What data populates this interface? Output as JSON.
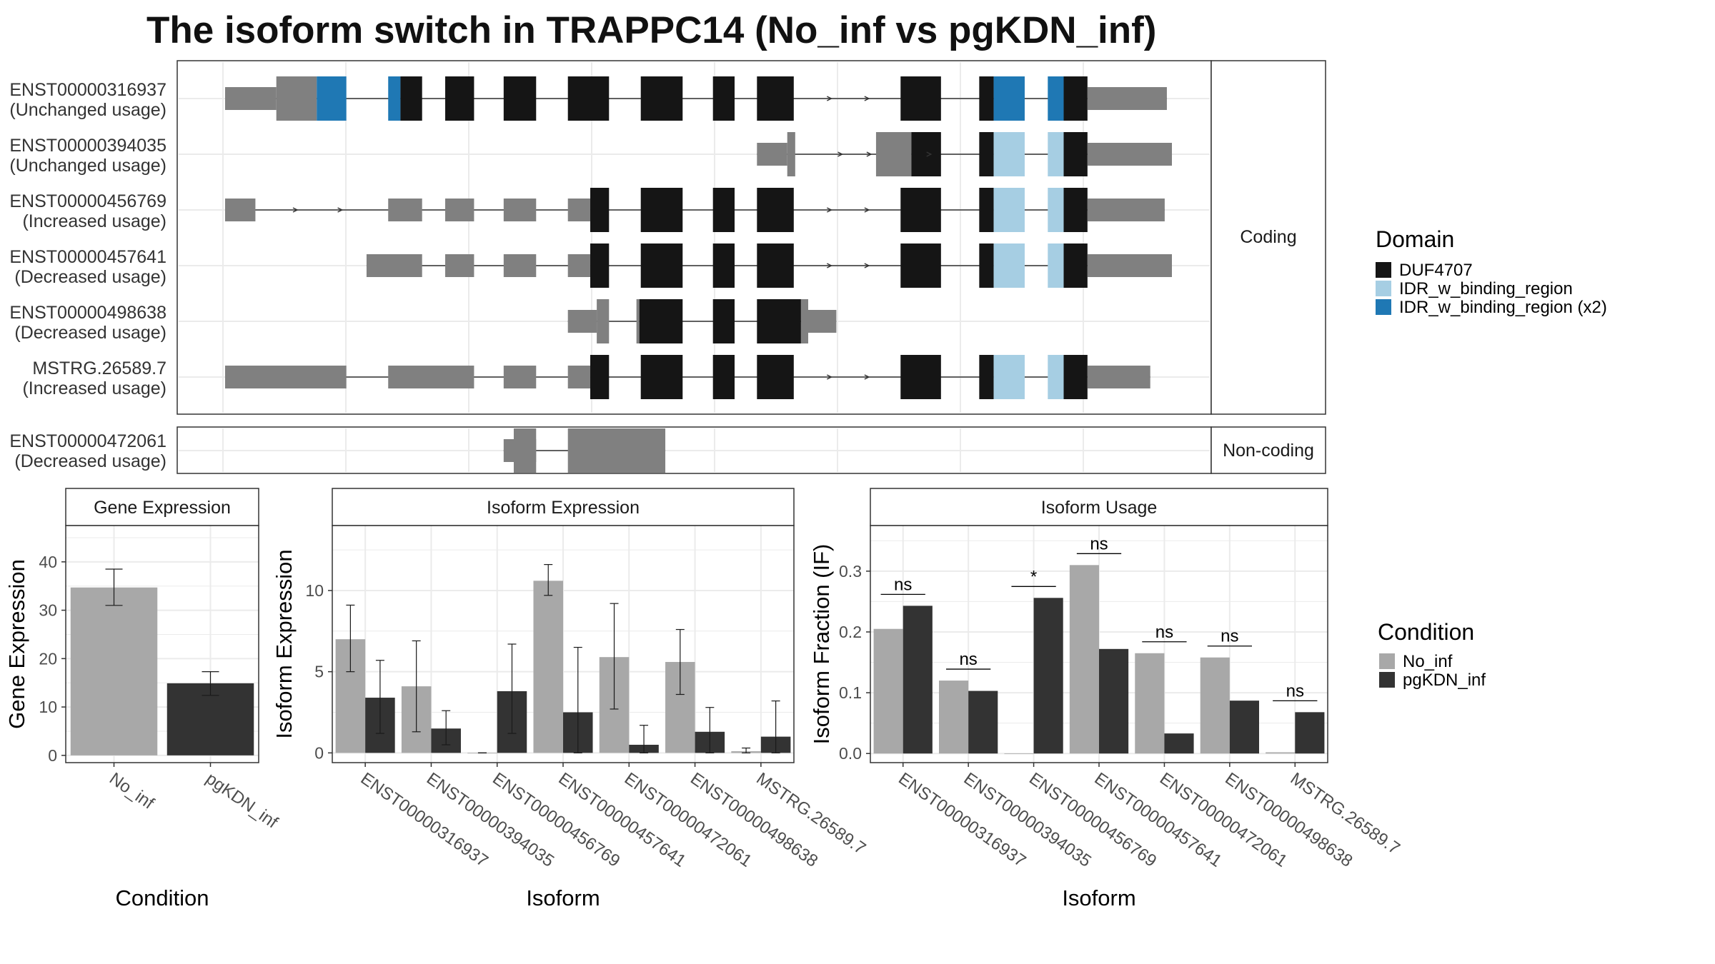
{
  "title": "The isoform switch in TRAPPC14 (No_inf vs pgKDN_inf)",
  "colors": {
    "utr": "#808080",
    "duf": "#151515",
    "idr": "#a6cee3",
    "idr2": "#1f78b4",
    "cond_no": "#a8a8a8",
    "cond_pg": "#333333"
  },
  "structure": {
    "coding_label": "Coding",
    "noncoding_label": "Non-coding",
    "transcripts": [
      {
        "id": "ENST00000316937",
        "usage": "(Unchanged usage)",
        "panel": "coding",
        "features": [
          {
            "s": 0,
            "e": 71,
            "k": "utr"
          },
          {
            "s": 71,
            "e": 127,
            "k": "utr",
            "tall": true
          },
          {
            "s": 127,
            "e": 168,
            "k": "idr2",
            "tall": true
          },
          {
            "s": 226,
            "e": 243,
            "k": "idr2",
            "tall": true
          },
          {
            "s": 243,
            "e": 273,
            "k": "duf",
            "tall": true
          },
          {
            "s": 305,
            "e": 345,
            "k": "duf",
            "tall": true
          },
          {
            "s": 386,
            "e": 431,
            "k": "duf",
            "tall": true
          },
          {
            "s": 475,
            "e": 532,
            "k": "duf",
            "tall": true
          },
          {
            "s": 576,
            "e": 634,
            "k": "duf",
            "tall": true
          },
          {
            "s": 676,
            "e": 706,
            "k": "duf",
            "tall": true
          },
          {
            "s": 737,
            "e": 788,
            "k": "duf",
            "tall": true
          },
          {
            "s": 936,
            "e": 992,
            "k": "duf",
            "tall": true
          },
          {
            "s": 1045,
            "e": 1065,
            "k": "duf",
            "tall": true
          },
          {
            "s": 1065,
            "e": 1108,
            "k": "idr2",
            "tall": true
          },
          {
            "s": 1140,
            "e": 1162,
            "k": "idr2",
            "tall": true
          },
          {
            "s": 1162,
            "e": 1195,
            "k": "duf",
            "tall": true
          },
          {
            "s": 1195,
            "e": 1305,
            "k": "utr"
          }
        ],
        "arrows": [
          840,
          892
        ]
      },
      {
        "id": "ENST00000394035",
        "usage": "(Unchanged usage)",
        "panel": "coding",
        "features": [
          {
            "s": 737,
            "e": 779,
            "k": "utr"
          },
          {
            "s": 779,
            "e": 790,
            "k": "utr",
            "tall": true
          },
          {
            "s": 902,
            "e": 951,
            "k": "utr",
            "tall": true
          },
          {
            "s": 951,
            "e": 992,
            "k": "duf",
            "tall": true
          },
          {
            "s": 1045,
            "e": 1065,
            "k": "duf",
            "tall": true
          },
          {
            "s": 1065,
            "e": 1108,
            "k": "idr",
            "tall": true
          },
          {
            "s": 1140,
            "e": 1162,
            "k": "idr",
            "tall": true
          },
          {
            "s": 1162,
            "e": 1195,
            "k": "duf",
            "tall": true
          },
          {
            "s": 1195,
            "e": 1312,
            "k": "utr"
          }
        ],
        "arrows": [
          855,
          895,
          978
        ]
      },
      {
        "id": "ENST00000456769",
        "usage": "(Increased usage)",
        "panel": "coding",
        "features": [
          {
            "s": 0,
            "e": 42,
            "k": "utr"
          },
          {
            "s": 226,
            "e": 273,
            "k": "utr"
          },
          {
            "s": 305,
            "e": 345,
            "k": "utr"
          },
          {
            "s": 386,
            "e": 431,
            "k": "utr"
          },
          {
            "s": 475,
            "e": 506,
            "k": "utr"
          },
          {
            "s": 506,
            "e": 532,
            "k": "duf",
            "tall": true
          },
          {
            "s": 576,
            "e": 634,
            "k": "duf",
            "tall": true
          },
          {
            "s": 676,
            "e": 706,
            "k": "duf",
            "tall": true
          },
          {
            "s": 737,
            "e": 788,
            "k": "duf",
            "tall": true
          },
          {
            "s": 936,
            "e": 992,
            "k": "duf",
            "tall": true
          },
          {
            "s": 1045,
            "e": 1065,
            "k": "duf",
            "tall": true
          },
          {
            "s": 1065,
            "e": 1108,
            "k": "idr",
            "tall": true
          },
          {
            "s": 1140,
            "e": 1162,
            "k": "idr",
            "tall": true
          },
          {
            "s": 1162,
            "e": 1195,
            "k": "duf",
            "tall": true
          },
          {
            "s": 1195,
            "e": 1302,
            "k": "utr"
          }
        ],
        "arrows": [
          100,
          162,
          840,
          892
        ]
      },
      {
        "id": "ENST00000457641",
        "usage": "(Decreased usage)",
        "panel": "coding",
        "features": [
          {
            "s": 196,
            "e": 273,
            "k": "utr"
          },
          {
            "s": 305,
            "e": 345,
            "k": "utr"
          },
          {
            "s": 386,
            "e": 431,
            "k": "utr"
          },
          {
            "s": 475,
            "e": 506,
            "k": "utr"
          },
          {
            "s": 506,
            "e": 532,
            "k": "duf",
            "tall": true
          },
          {
            "s": 576,
            "e": 634,
            "k": "duf",
            "tall": true
          },
          {
            "s": 676,
            "e": 706,
            "k": "duf",
            "tall": true
          },
          {
            "s": 737,
            "e": 788,
            "k": "duf",
            "tall": true
          },
          {
            "s": 936,
            "e": 992,
            "k": "duf",
            "tall": true
          },
          {
            "s": 1045,
            "e": 1065,
            "k": "duf",
            "tall": true
          },
          {
            "s": 1065,
            "e": 1108,
            "k": "idr",
            "tall": true
          },
          {
            "s": 1140,
            "e": 1162,
            "k": "idr",
            "tall": true
          },
          {
            "s": 1162,
            "e": 1195,
            "k": "duf",
            "tall": true
          },
          {
            "s": 1195,
            "e": 1312,
            "k": "utr"
          }
        ],
        "arrows": [
          840,
          892
        ]
      },
      {
        "id": "ENST00000498638",
        "usage": "(Decreased usage)",
        "panel": "coding",
        "features": [
          {
            "s": 475,
            "e": 515,
            "k": "utr"
          },
          {
            "s": 515,
            "e": 532,
            "k": "utr",
            "tall": true
          },
          {
            "s": 570,
            "e": 574,
            "k": "utr",
            "tall": true
          },
          {
            "s": 574,
            "e": 634,
            "k": "duf",
            "tall": true
          },
          {
            "s": 676,
            "e": 706,
            "k": "duf",
            "tall": true
          },
          {
            "s": 737,
            "e": 798,
            "k": "duf",
            "tall": true
          },
          {
            "s": 798,
            "e": 808,
            "k": "utr",
            "tall": true
          },
          {
            "s": 808,
            "e": 847,
            "k": "utr"
          }
        ],
        "arrows": []
      },
      {
        "id": "MSTRG.26589.7",
        "usage": "(Increased usage)",
        "panel": "coding",
        "features": [
          {
            "s": 0,
            "e": 168,
            "k": "utr"
          },
          {
            "s": 226,
            "e": 345,
            "k": "utr"
          },
          {
            "s": 386,
            "e": 431,
            "k": "utr"
          },
          {
            "s": 475,
            "e": 506,
            "k": "utr"
          },
          {
            "s": 506,
            "e": 532,
            "k": "duf",
            "tall": true
          },
          {
            "s": 576,
            "e": 634,
            "k": "duf",
            "tall": true
          },
          {
            "s": 676,
            "e": 706,
            "k": "duf",
            "tall": true
          },
          {
            "s": 737,
            "e": 788,
            "k": "duf",
            "tall": true
          },
          {
            "s": 936,
            "e": 992,
            "k": "duf",
            "tall": true
          },
          {
            "s": 1045,
            "e": 1065,
            "k": "duf",
            "tall": true
          },
          {
            "s": 1065,
            "e": 1108,
            "k": "idr",
            "tall": true
          },
          {
            "s": 1140,
            "e": 1162,
            "k": "idr",
            "tall": true
          },
          {
            "s": 1162,
            "e": 1195,
            "k": "duf",
            "tall": true
          },
          {
            "s": 1195,
            "e": 1282,
            "k": "utr"
          }
        ],
        "arrows": [
          840,
          892
        ]
      },
      {
        "id": "ENST00000472061",
        "usage": "(Decreased usage)",
        "panel": "noncoding",
        "features": [
          {
            "s": 386,
            "e": 431,
            "k": "utr"
          },
          {
            "s": 386,
            "e": 431,
            "k": "utr",
            "tall": true,
            "narrowTall": [
              400,
              431
            ]
          },
          {
            "s": 475,
            "e": 610,
            "k": "utr",
            "tall": true
          },
          {
            "s": 610,
            "e": 607,
            "k": "none"
          },
          {
            "s": 607,
            "e": 607,
            "k": "none"
          }
        ],
        "extra": [
          {
            "s": 610,
            "e": 607,
            "k": "none"
          }
        ],
        "tail": {
          "s": 607,
          "e": 610
        },
        "arrows": []
      }
    ]
  },
  "legend_domain": {
    "title": "Domain",
    "items": [
      {
        "label": "DUF4707",
        "color": "#151515"
      },
      {
        "label": "IDR_w_binding_region",
        "color": "#a6cee3"
      },
      {
        "label": "IDR_w_binding_region (x2)",
        "color": "#1f78b4"
      }
    ]
  },
  "legend_condition": {
    "title": "Condition",
    "items": [
      {
        "label": "No_inf",
        "color": "#a8a8a8"
      },
      {
        "label": "pgKDN_inf",
        "color": "#333333"
      }
    ]
  },
  "chart_data": [
    {
      "type": "bar",
      "title": "Gene Expression",
      "xlabel": "Condition",
      "ylabel": "Gene Expression",
      "categories": [
        "No_inf",
        "pgKDN_inf"
      ],
      "values": [
        34.7,
        14.9
      ],
      "err_low": [
        31.0,
        12.4
      ],
      "err_high": [
        38.5,
        17.3
      ],
      "ylim": [
        -1.5,
        47.5
      ],
      "yticks": [
        0,
        10,
        20,
        30,
        40
      ],
      "grid": true
    },
    {
      "type": "bar",
      "title": "Isoform Expression",
      "xlabel": "Isoform",
      "ylabel": "Isoform Expression",
      "categories": [
        "ENST00000316937",
        "ENST00000394035",
        "ENST00000456769",
        "ENST00000457641",
        "ENST00000472061",
        "ENST00000498638",
        "MSTRG.26589.7"
      ],
      "series": [
        {
          "name": "No_inf",
          "values": [
            7.0,
            4.1,
            0.0,
            10.6,
            5.9,
            5.6,
            0.1
          ],
          "err_low": [
            5.0,
            1.3,
            0.0,
            9.7,
            2.7,
            3.6,
            0.0
          ],
          "err_high": [
            9.1,
            6.9,
            0.0,
            11.6,
            9.2,
            7.6,
            0.3
          ]
        },
        {
          "name": "pgKDN_inf",
          "values": [
            3.4,
            1.5,
            3.8,
            2.5,
            0.5,
            1.3,
            1.0
          ],
          "err_low": [
            1.2,
            0.5,
            1.2,
            0.0,
            0.0,
            0.0,
            0.0
          ],
          "err_high": [
            5.7,
            2.6,
            6.7,
            6.5,
            1.7,
            2.8,
            3.2
          ]
        }
      ],
      "ylim": [
        -0.6,
        14.0
      ],
      "yticks": [
        0,
        5,
        10
      ],
      "grid": true
    },
    {
      "type": "bar",
      "title": "Isoform Usage",
      "xlabel": "Isoform",
      "ylabel": "Isoform Fraction (IF)",
      "categories": [
        "ENST00000316937",
        "ENST00000394035",
        "ENST00000456769",
        "ENST00000457641",
        "ENST00000472061",
        "ENST00000498638",
        "MSTRG.26589.7"
      ],
      "series": [
        {
          "name": "No_inf",
          "values": [
            0.205,
            0.12,
            0.0,
            0.31,
            0.165,
            0.158,
            0.002
          ]
        },
        {
          "name": "pgKDN_inf",
          "values": [
            0.243,
            0.103,
            0.256,
            0.172,
            0.033,
            0.087,
            0.068
          ]
        }
      ],
      "significance": [
        "ns",
        "ns",
        "*",
        "ns",
        "ns",
        "ns",
        "ns"
      ],
      "ylim": [
        -0.015,
        0.375
      ],
      "yticks": [
        0.0,
        0.1,
        0.2,
        0.3
      ],
      "ytick_labels": [
        "0.0",
        "0.1",
        "0.2",
        "0.3"
      ],
      "grid": true
    }
  ]
}
